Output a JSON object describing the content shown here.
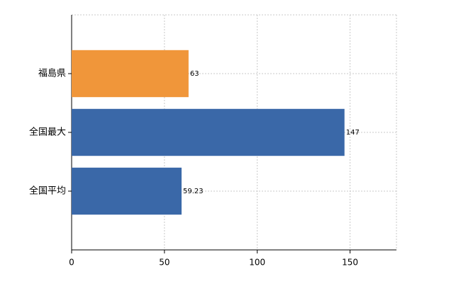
{
  "chart_data": {
    "type": "hbar",
    "categories": [
      "福島県",
      "全国最大",
      "全国平均"
    ],
    "values": [
      63,
      147,
      59.23
    ],
    "colors": [
      "#f0963a",
      "#3a68a8",
      "#3a68a8"
    ],
    "xlim": [
      0,
      175
    ],
    "xticks": [
      0,
      50,
      100,
      150
    ],
    "grid": true
  }
}
